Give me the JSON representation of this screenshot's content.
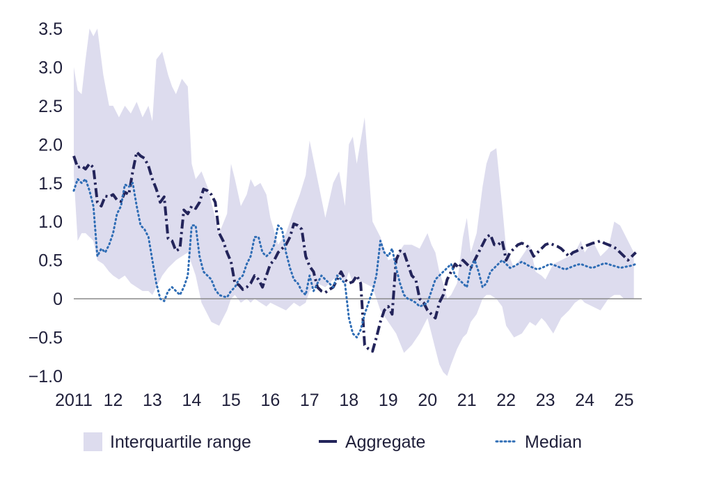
{
  "chart_data": {
    "type": "line",
    "title": "",
    "xlabel": "",
    "ylabel": "",
    "ylim": [
      -1.0,
      3.5
    ],
    "xlim": [
      2011.0,
      2025.45
    ],
    "grid": false,
    "zero_line": true,
    "legend_position": "bottom",
    "y_ticks": [
      {
        "value": 3.5,
        "label": "3.5"
      },
      {
        "value": 3.0,
        "label": "3.0"
      },
      {
        "value": 2.5,
        "label": "2.5"
      },
      {
        "value": 2.0,
        "label": "2.0"
      },
      {
        "value": 1.5,
        "label": "1.5"
      },
      {
        "value": 1.0,
        "label": "1.0"
      },
      {
        "value": 0.5,
        "label": "0.5"
      },
      {
        "value": 0,
        "label": "0"
      },
      {
        "value": -0.5,
        "label": "−0.5"
      },
      {
        "value": -1.0,
        "label": "−1.0"
      }
    ],
    "x_ticks": [
      {
        "value": 2011,
        "label": "2011"
      },
      {
        "value": 2012,
        "label": "12"
      },
      {
        "value": 2013,
        "label": "13"
      },
      {
        "value": 2014,
        "label": "14"
      },
      {
        "value": 2015,
        "label": "15"
      },
      {
        "value": 2016,
        "label": "16"
      },
      {
        "value": 2017,
        "label": "17"
      },
      {
        "value": 2018,
        "label": "18"
      },
      {
        "value": 2019,
        "label": "19"
      },
      {
        "value": 2020,
        "label": "20"
      },
      {
        "value": 2021,
        "label": "21"
      },
      {
        "value": 2022,
        "label": "22"
      },
      {
        "value": 2023,
        "label": "23"
      },
      {
        "value": 2024,
        "label": "24"
      },
      {
        "value": 2025,
        "label": "25"
      }
    ],
    "legend": [
      {
        "key": "iqr",
        "label": "Interquartile range",
        "style": "area"
      },
      {
        "key": "aggregate",
        "label": "Aggregate",
        "style": "dashdot"
      },
      {
        "key": "median",
        "label": "Median",
        "style": "dotted"
      }
    ],
    "colors": {
      "iqr": "#dddcee",
      "aggregate": "#23245a",
      "median": "#2f6db5",
      "axis": "#8a8a8a",
      "text": "#1f1f3a"
    },
    "interquartile_range": {
      "name": "Interquartile range",
      "x": [
        2011.0,
        2011.1,
        2011.2,
        2011.3,
        2011.4,
        2011.5,
        2011.6,
        2011.75,
        2011.9,
        2012.0,
        2012.15,
        2012.3,
        2012.45,
        2012.6,
        2012.75,
        2012.9,
        2013.0,
        2013.1,
        2013.25,
        2013.4,
        2013.5,
        2013.6,
        2013.75,
        2013.9,
        2014.0,
        2014.1,
        2014.25,
        2014.4,
        2014.5,
        2014.7,
        2014.9,
        2015.0,
        2015.1,
        2015.25,
        2015.4,
        2015.5,
        2015.6,
        2015.75,
        2015.9,
        2016.0,
        2016.2,
        2016.4,
        2016.6,
        2016.75,
        2016.9,
        2017.0,
        2017.2,
        2017.4,
        2017.6,
        2017.75,
        2017.9,
        2018.0,
        2018.1,
        2018.2,
        2018.4,
        2018.6,
        2018.8,
        2019.0,
        2019.2,
        2019.4,
        2019.6,
        2019.8,
        2020.0,
        2020.1,
        2020.2,
        2020.3,
        2020.4,
        2020.5,
        2020.6,
        2020.75,
        2020.9,
        2021.0,
        2021.1,
        2021.25,
        2021.4,
        2021.5,
        2021.6,
        2021.75,
        2021.9,
        2022.0,
        2022.2,
        2022.4,
        2022.6,
        2022.75,
        2022.9,
        2023.0,
        2023.2,
        2023.4,
        2023.6,
        2023.75,
        2023.9,
        2024.0,
        2024.2,
        2024.4,
        2024.6,
        2024.75,
        2024.9,
        2025.0,
        2025.25
      ],
      "upper": [
        3.0,
        2.7,
        2.65,
        3.1,
        3.5,
        3.4,
        3.5,
        2.9,
        2.5,
        2.5,
        2.35,
        2.5,
        2.4,
        2.55,
        2.35,
        2.5,
        2.3,
        3.1,
        3.2,
        2.9,
        2.75,
        2.65,
        2.85,
        2.75,
        1.75,
        1.55,
        1.65,
        1.45,
        1.25,
        0.85,
        1.1,
        1.75,
        1.55,
        1.2,
        1.35,
        1.55,
        1.45,
        1.5,
        1.35,
        1.05,
        0.7,
        0.85,
        1.15,
        1.35,
        1.6,
        2.05,
        1.55,
        1.05,
        1.5,
        1.65,
        1.2,
        2.0,
        2.1,
        1.75,
        2.35,
        1.0,
        0.8,
        0.5,
        0.55,
        0.7,
        0.7,
        0.65,
        0.85,
        0.7,
        0.6,
        0.35,
        0.2,
        0.0,
        0.05,
        0.2,
        0.8,
        1.05,
        0.6,
        0.85,
        1.45,
        1.75,
        1.9,
        1.95,
        1.2,
        0.65,
        0.4,
        0.55,
        0.7,
        0.35,
        0.3,
        0.25,
        0.45,
        0.5,
        0.55,
        0.6,
        0.75,
        0.6,
        0.75,
        0.55,
        0.65,
        1.0,
        0.95,
        0.85,
        0.6
      ],
      "lower": [
        1.6,
        0.75,
        0.85,
        0.85,
        0.8,
        0.75,
        0.5,
        0.45,
        0.35,
        0.3,
        0.25,
        0.3,
        0.2,
        0.15,
        0.1,
        0.1,
        0.05,
        0.15,
        0.3,
        0.4,
        0.45,
        0.5,
        0.55,
        0.6,
        0.45,
        0.3,
        -0.05,
        -0.2,
        -0.3,
        -0.35,
        -0.15,
        0.0,
        0.05,
        -0.05,
        0.0,
        -0.05,
        0.0,
        -0.05,
        -0.1,
        -0.05,
        -0.1,
        -0.15,
        -0.05,
        -0.1,
        -0.05,
        0.1,
        0.2,
        0.15,
        0.25,
        0.3,
        0.2,
        0.35,
        0.2,
        0.25,
        0.2,
        0.15,
        -0.15,
        -0.3,
        -0.45,
        -0.7,
        -0.6,
        -0.45,
        -0.25,
        -0.45,
        -0.65,
        -0.85,
        -0.95,
        -1.0,
        -0.85,
        -0.65,
        -0.5,
        -0.45,
        -0.3,
        -0.2,
        0.0,
        0.05,
        0.05,
        0.0,
        -0.1,
        -0.35,
        -0.5,
        -0.45,
        -0.3,
        -0.35,
        -0.25,
        -0.3,
        -0.45,
        -0.25,
        -0.15,
        -0.05,
        0.0,
        -0.05,
        -0.1,
        -0.15,
        0.0,
        0.05,
        0.05,
        0.0,
        0.0
      ]
    },
    "series": [
      {
        "name": "Aggregate",
        "x": [
          2011.0,
          2011.1,
          2011.2,
          2011.3,
          2011.4,
          2011.5,
          2011.6,
          2011.7,
          2011.8,
          2011.9,
          2012.0,
          2012.1,
          2012.2,
          2012.3,
          2012.4,
          2012.5,
          2012.6,
          2012.7,
          2012.8,
          2012.9,
          2013.0,
          2013.1,
          2013.2,
          2013.3,
          2013.4,
          2013.5,
          2013.6,
          2013.7,
          2013.8,
          2013.9,
          2014.0,
          2014.1,
          2014.2,
          2014.3,
          2014.4,
          2014.5,
          2014.6,
          2014.7,
          2014.8,
          2014.9,
          2015.0,
          2015.1,
          2015.2,
          2015.3,
          2015.4,
          2015.5,
          2015.6,
          2015.7,
          2015.8,
          2015.9,
          2016.0,
          2016.1,
          2016.2,
          2016.3,
          2016.4,
          2016.5,
          2016.6,
          2016.7,
          2016.8,
          2016.9,
          2017.0,
          2017.1,
          2017.2,
          2017.3,
          2017.4,
          2017.5,
          2017.6,
          2017.7,
          2017.8,
          2017.9,
          2018.0,
          2018.1,
          2018.2,
          2018.3,
          2018.4,
          2018.5,
          2018.6,
          2018.7,
          2018.8,
          2018.9,
          2019.0,
          2019.1,
          2019.2,
          2019.3,
          2019.4,
          2019.5,
          2019.6,
          2019.7,
          2019.8,
          2019.9,
          2020.0,
          2020.1,
          2020.2,
          2020.3,
          2020.4,
          2020.5,
          2020.6,
          2020.7,
          2020.8,
          2020.9,
          2021.0,
          2021.1,
          2021.2,
          2021.3,
          2021.4,
          2021.5,
          2021.6,
          2021.7,
          2021.8,
          2021.9,
          2022.0,
          2022.1,
          2022.2,
          2022.3,
          2022.4,
          2022.5,
          2022.6,
          2022.7,
          2022.8,
          2022.9,
          2023.0,
          2023.1,
          2023.2,
          2023.3,
          2023.4,
          2023.5,
          2023.6,
          2023.7,
          2023.8,
          2023.9,
          2024.0,
          2024.1,
          2024.2,
          2024.3,
          2024.4,
          2024.5,
          2024.6,
          2024.7,
          2024.8,
          2024.9,
          2025.0,
          2025.1,
          2025.2,
          2025.3
        ],
        "values": [
          1.85,
          1.7,
          1.72,
          1.68,
          1.75,
          1.7,
          1.25,
          1.2,
          1.33,
          1.32,
          1.35,
          1.28,
          1.26,
          1.38,
          1.35,
          1.65,
          1.9,
          1.85,
          1.82,
          1.72,
          1.55,
          1.42,
          1.25,
          1.32,
          0.78,
          0.75,
          0.62,
          0.65,
          1.15,
          1.1,
          1.2,
          1.17,
          1.25,
          1.42,
          1.4,
          1.35,
          1.25,
          0.85,
          0.75,
          0.6,
          0.48,
          0.2,
          0.18,
          0.12,
          0.15,
          0.2,
          0.3,
          0.25,
          0.15,
          0.3,
          0.45,
          0.5,
          0.6,
          0.65,
          0.7,
          0.8,
          0.97,
          0.95,
          0.9,
          0.55,
          0.42,
          0.35,
          0.15,
          0.1,
          0.08,
          0.12,
          0.15,
          0.25,
          0.35,
          0.25,
          0.2,
          0.22,
          0.3,
          0.2,
          -0.6,
          -0.65,
          -0.68,
          -0.5,
          -0.3,
          -0.15,
          -0.1,
          -0.2,
          0.5,
          0.62,
          0.6,
          0.45,
          0.3,
          0.25,
          0.0,
          -0.05,
          -0.15,
          -0.2,
          -0.25,
          -0.05,
          0.05,
          0.25,
          0.35,
          0.45,
          0.4,
          0.5,
          0.45,
          0.4,
          0.5,
          0.6,
          0.7,
          0.8,
          0.83,
          0.7,
          0.7,
          0.75,
          0.5,
          0.6,
          0.65,
          0.7,
          0.72,
          0.7,
          0.65,
          0.55,
          0.6,
          0.65,
          0.7,
          0.72,
          0.7,
          0.68,
          0.65,
          0.6,
          0.55,
          0.6,
          0.62,
          0.65,
          0.68,
          0.7,
          0.72,
          0.73,
          0.75,
          0.72,
          0.7,
          0.68,
          0.65,
          0.6,
          0.55,
          0.5,
          0.55,
          0.6
        ]
      },
      {
        "name": "Median",
        "x": [
          2011.0,
          2011.1,
          2011.2,
          2011.3,
          2011.4,
          2011.5,
          2011.6,
          2011.7,
          2011.8,
          2011.9,
          2012.0,
          2012.1,
          2012.2,
          2012.3,
          2012.4,
          2012.5,
          2012.6,
          2012.7,
          2012.8,
          2012.9,
          2013.0,
          2013.1,
          2013.2,
          2013.3,
          2013.4,
          2013.5,
          2013.6,
          2013.7,
          2013.8,
          2013.9,
          2014.0,
          2014.1,
          2014.2,
          2014.3,
          2014.4,
          2014.5,
          2014.6,
          2014.7,
          2014.8,
          2014.9,
          2015.0,
          2015.1,
          2015.2,
          2015.3,
          2015.4,
          2015.5,
          2015.6,
          2015.7,
          2015.8,
          2015.9,
          2016.0,
          2016.1,
          2016.2,
          2016.3,
          2016.4,
          2016.5,
          2016.6,
          2016.7,
          2016.8,
          2016.9,
          2017.0,
          2017.1,
          2017.2,
          2017.3,
          2017.4,
          2017.5,
          2017.6,
          2017.7,
          2017.8,
          2017.9,
          2018.0,
          2018.1,
          2018.2,
          2018.3,
          2018.4,
          2018.5,
          2018.6,
          2018.7,
          2018.8,
          2018.9,
          2019.0,
          2019.1,
          2019.2,
          2019.3,
          2019.4,
          2019.5,
          2019.6,
          2019.7,
          2019.8,
          2019.9,
          2020.0,
          2020.1,
          2020.2,
          2020.3,
          2020.4,
          2020.5,
          2020.6,
          2020.7,
          2020.8,
          2020.9,
          2021.0,
          2021.1,
          2021.2,
          2021.3,
          2021.4,
          2021.5,
          2021.6,
          2021.7,
          2021.8,
          2021.9,
          2022.0,
          2022.1,
          2022.2,
          2022.3,
          2022.4,
          2022.5,
          2022.6,
          2022.7,
          2022.8,
          2022.9,
          2023.0,
          2023.1,
          2023.2,
          2023.3,
          2023.4,
          2023.5,
          2023.6,
          2023.7,
          2023.8,
          2023.9,
          2024.0,
          2024.1,
          2024.2,
          2024.3,
          2024.4,
          2024.5,
          2024.6,
          2024.7,
          2024.8,
          2024.9,
          2025.0,
          2025.1,
          2025.2,
          2025.3
        ],
        "values": [
          1.4,
          1.55,
          1.5,
          1.55,
          1.4,
          1.2,
          0.55,
          0.65,
          0.6,
          0.7,
          0.85,
          1.1,
          1.2,
          1.48,
          1.45,
          1.5,
          1.2,
          0.95,
          0.9,
          0.8,
          0.5,
          0.2,
          0.0,
          -0.03,
          0.1,
          0.15,
          0.1,
          0.05,
          0.15,
          0.3,
          0.95,
          0.95,
          0.55,
          0.35,
          0.3,
          0.25,
          0.12,
          0.05,
          0.03,
          0.02,
          0.1,
          0.15,
          0.25,
          0.3,
          0.45,
          0.55,
          0.8,
          0.8,
          0.6,
          0.55,
          0.6,
          0.7,
          0.95,
          0.9,
          0.6,
          0.4,
          0.25,
          0.2,
          0.1,
          0.05,
          0.3,
          0.1,
          0.2,
          0.3,
          0.25,
          0.2,
          0.15,
          0.3,
          0.25,
          0.2,
          -0.25,
          -0.45,
          -0.5,
          -0.4,
          -0.2,
          -0.05,
          0.1,
          0.3,
          0.75,
          0.6,
          0.55,
          0.65,
          0.4,
          0.2,
          0.05,
          0.0,
          -0.02,
          -0.05,
          -0.1,
          -0.08,
          -0.05,
          0.1,
          0.25,
          0.3,
          0.35,
          0.4,
          0.45,
          0.3,
          0.25,
          0.2,
          0.15,
          0.4,
          0.5,
          0.35,
          0.15,
          0.2,
          0.35,
          0.4,
          0.45,
          0.5,
          0.45,
          0.4,
          0.42,
          0.45,
          0.48,
          0.45,
          0.42,
          0.4,
          0.38,
          0.4,
          0.42,
          0.45,
          0.44,
          0.42,
          0.4,
          0.38,
          0.4,
          0.42,
          0.44,
          0.45,
          0.43,
          0.41,
          0.4,
          0.42,
          0.44,
          0.46,
          0.45,
          0.43,
          0.42,
          0.4,
          0.41,
          0.42,
          0.43,
          0.45
        ]
      }
    ]
  }
}
